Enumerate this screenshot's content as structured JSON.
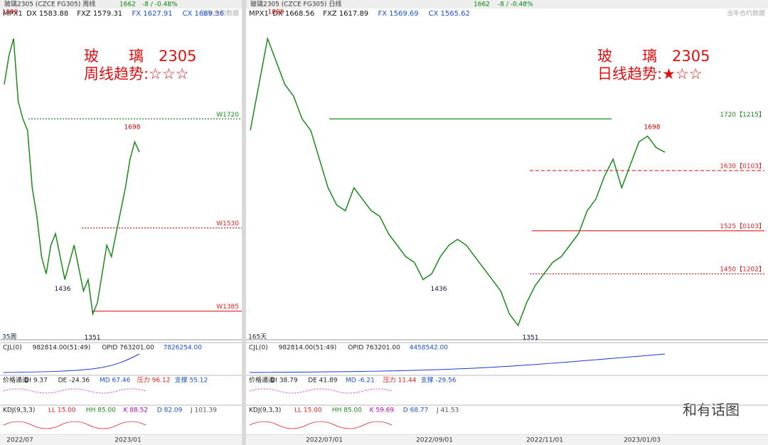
{
  "panels": [
    {
      "header": {
        "title": "玻璃2305 (CZCE FG305)  周线",
        "last": "1662",
        "change": "-8 / -0.48%",
        "note": "当年合约数据"
      },
      "info": [
        "MPX1",
        "DX 1583.88",
        "FXZ 1579.31",
        "FX 1627.91",
        "CX 1689.36"
      ],
      "overlay": [
        "玻　　璃　2305",
        "周线趋势:☆☆☆"
      ],
      "ylim": [
        1345,
        1895
      ],
      "levels": [
        {
          "value": 1720,
          "label": "W1720",
          "color": "#1a8a1a"
        },
        {
          "value": 1530,
          "label": "W1530",
          "color": "#e02020"
        },
        {
          "value": 1385,
          "label": "W1385",
          "color": "#e02020"
        }
      ],
      "peaks": [
        1899,
        1698,
        1436,
        1351
      ],
      "close": [
        1780,
        1830,
        1860,
        1750,
        1720,
        1700,
        1600,
        1550,
        1480,
        1450,
        1500,
        1520,
        1480,
        1440,
        1470,
        1500,
        1460,
        1420,
        1440,
        1380,
        1400,
        1450,
        1500,
        1480,
        1520,
        1560,
        1600,
        1650,
        1680,
        1662
      ],
      "period": "35周",
      "indicators": [
        [
          "CJL(0)",
          "982814.00(51:49)",
          "OPID 763201.00",
          "7826254.00"
        ],
        [
          "价格通道",
          "DI 9.37",
          "DE -24.36",
          "MD 67.46",
          "压力 96.12",
          "支撑 55.12"
        ],
        [
          "KDJ(9,3,3)",
          "LL 15.00",
          "HH 85.00",
          "K 88.52",
          "D 82.09",
          "J 101.39"
        ]
      ],
      "dates": [
        "2022/07",
        "2023/01"
      ]
    },
    {
      "header": {
        "title": "玻璃2305 (CZCE FG305)  日线",
        "last": "1662",
        "change": "-8 / -0.48%",
        "note": "当年合约数据"
      },
      "info": [
        "MPX1",
        "DX 1668.56",
        "FXZ 1617.89",
        "FX 1569.69",
        "CX 1565.62"
      ],
      "overlay": [
        "玻　　璃　2305",
        "日线趋势:★☆☆"
      ],
      "ylim": [
        1345,
        1895
      ],
      "levels": [
        {
          "value": 1720,
          "label": "1720【1215】",
          "color": "#1a8a1a"
        },
        {
          "value": 1630,
          "label": "1630【0103】",
          "color": "#e02020"
        },
        {
          "value": 1525,
          "label": "1525【0103】",
          "color": "#e02020"
        },
        {
          "value": 1450,
          "label": "1450【1202】",
          "color": "#e02020"
        }
      ],
      "peaks": [
        1899,
        1698,
        1436,
        1351
      ],
      "close": [
        1700,
        1780,
        1860,
        1820,
        1780,
        1760,
        1720,
        1700,
        1650,
        1600,
        1570,
        1560,
        1600,
        1580,
        1560,
        1550,
        1520,
        1500,
        1480,
        1470,
        1440,
        1450,
        1480,
        1500,
        1510,
        1500,
        1480,
        1460,
        1440,
        1420,
        1380,
        1360,
        1400,
        1430,
        1450,
        1470,
        1480,
        1500,
        1520,
        1560,
        1580,
        1620,
        1650,
        1600,
        1640,
        1680,
        1690,
        1670,
        1662
      ],
      "period": "165天",
      "indicators": [
        [
          "CJL(0)",
          "982814.00(51:49)",
          "OPID 763201.00",
          "4458542.00"
        ],
        [
          "价格通道",
          "DI 38.79",
          "DE 41.89",
          "MD -6.21",
          "压力 11.44",
          "支撑 -29.56"
        ],
        [
          "KDJ(9,3,3)",
          "LL 15.00",
          "HH 85.00",
          "K 59.69",
          "D 68.77",
          "J 41.53"
        ]
      ],
      "dates": [
        "2022/07/01",
        "2022/09/01",
        "2022/11/01",
        "2023/01/03"
      ]
    }
  ],
  "watermark": "和有话图"
}
